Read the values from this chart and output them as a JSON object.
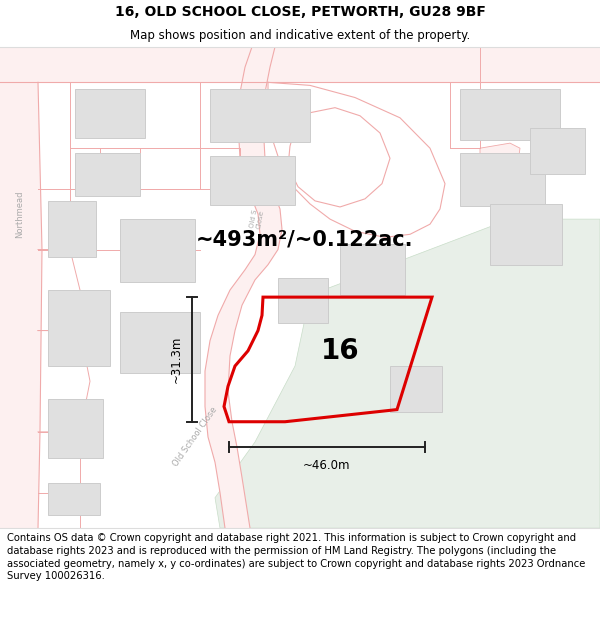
{
  "title_line1": "16, OLD SCHOOL CLOSE, PETWORTH, GU28 9BF",
  "title_line2": "Map shows position and indicative extent of the property.",
  "footer_text": "Contains OS data © Crown copyright and database right 2021. This information is subject to Crown copyright and database rights 2023 and is reproduced with the permission of HM Land Registry. The polygons (including the associated geometry, namely x, y co-ordinates) are subject to Crown copyright and database rights 2023 Ordnance Survey 100026316.",
  "area_label": "~493m²/~0.122ac.",
  "number_label": "16",
  "dim_height": "~31.3m",
  "dim_width": "~46.0m",
  "road_line_color": "#f0aaaa",
  "road_fill_color": "#fdf0f0",
  "building_fill": "#e0e0e0",
  "building_edge": "#cccccc",
  "green_fill": "#e8efe8",
  "green_edge": "#c8ddc8",
  "plot_color": "#dd0000",
  "dim_color": "#222222",
  "label_color": "#aaaaaa",
  "bg_color": "#ffffff",
  "title_fontsize": 10,
  "subtitle_fontsize": 8.5,
  "area_fontsize": 15,
  "number_fontsize": 20,
  "footer_fontsize": 7.2,
  "dim_fontsize": 8.5,
  "road_label_fontsize": 6
}
